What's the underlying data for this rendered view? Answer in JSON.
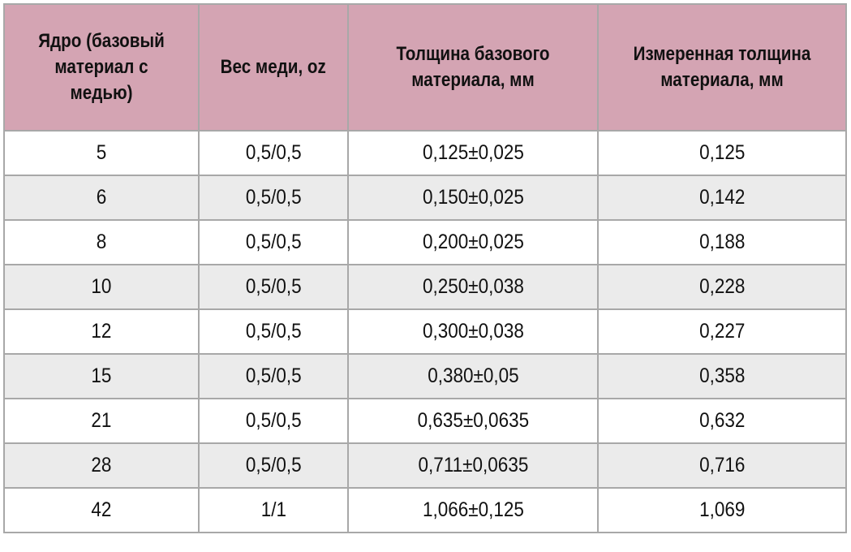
{
  "table": {
    "headers": [
      "Ядро (базовый материал с медью)",
      "Вес меди, oz",
      "Толщина базового материала, мм",
      "Измеренная толщина материала, мм"
    ],
    "rows": [
      [
        "5",
        "0,5/0,5",
        "0,125±0,025",
        "0,125"
      ],
      [
        "6",
        "0,5/0,5",
        "0,150±0,025",
        "0,142"
      ],
      [
        "8",
        "0,5/0,5",
        "0,200±0,025",
        "0,188"
      ],
      [
        "10",
        "0,5/0,5",
        "0,250±0,038",
        "0,228"
      ],
      [
        "12",
        "0,5/0,5",
        "0,300±0,038",
        "0,227"
      ],
      [
        "15",
        "0,5/0,5",
        "0,380±0,05",
        "0,358"
      ],
      [
        "21",
        "0,5/0,5",
        "0,635±0,0635",
        "0,632"
      ],
      [
        "28",
        "0,5/0,5",
        "0,711±0,0635",
        "0,716"
      ],
      [
        "42",
        "1/1",
        "1,066±0,125",
        "1,069"
      ]
    ]
  },
  "colors": {
    "header_bg": "#d4a4b3",
    "row_alt_bg": "#ebebeb",
    "border": "#a8a8a8"
  }
}
